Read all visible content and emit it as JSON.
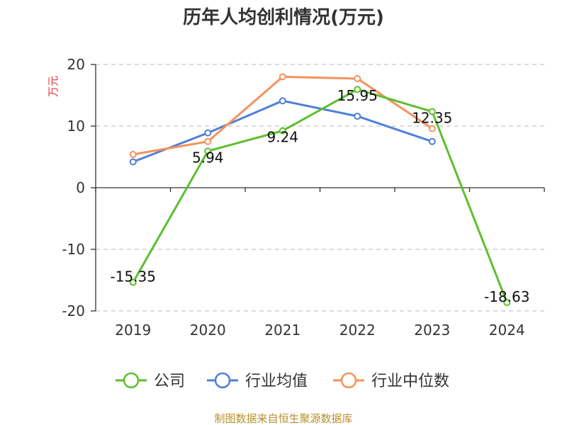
{
  "chart_data": {
    "type": "line",
    "title": "历年人均创利情况(万元)",
    "ylabel": "万元",
    "xlabel": "",
    "categories": [
      "2019",
      "2020",
      "2021",
      "2022",
      "2023",
      "2024"
    ],
    "ylim": [
      -20,
      20
    ],
    "yticks": [
      20,
      10,
      0,
      -10,
      -20
    ],
    "grid": true,
    "legend_position": "bottom",
    "series": [
      {
        "name": "公司",
        "color": "#5dbf2d",
        "values": [
          -15.35,
          5.94,
          9.24,
          15.95,
          12.35,
          -18.63
        ],
        "data_labels": [
          "-15.35",
          "5.94",
          "9.24",
          "15.95",
          "12.35",
          "-18.63"
        ]
      },
      {
        "name": "行业均值",
        "color": "#4f7fd9",
        "values": [
          4.2,
          8.9,
          14.1,
          11.6,
          7.5,
          null
        ]
      },
      {
        "name": "行业中位数",
        "color": "#f5925b",
        "values": [
          5.4,
          7.5,
          18.0,
          17.7,
          9.6,
          null
        ]
      }
    ],
    "source": "制图数据来自恒生聚源数据库"
  }
}
